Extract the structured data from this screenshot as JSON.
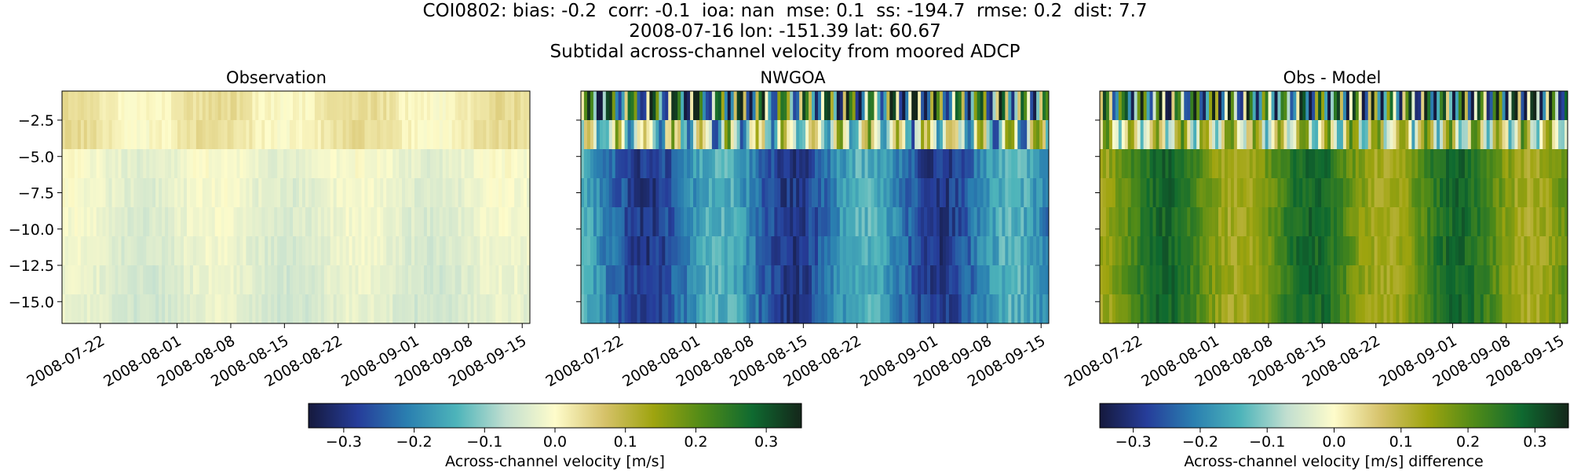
{
  "figure": {
    "title_lines": [
      "COI0802: bias: -0.2  corr: -0.1  ioa: nan  mse: 0.1  ss: -194.7  rmse: 0.2  dist: 7.7",
      "2008-07-16 lon: -151.39 lat: 60.67",
      "Subtidal across-channel velocity from moored ADCP"
    ]
  },
  "chart_data": [
    {
      "type": "heatmap",
      "title": "Observation",
      "x_range": [
        "2008-07-17",
        "2008-09-16"
      ],
      "x_tick_labels": [
        "2008-07-22",
        "2008-08-01",
        "2008-08-08",
        "2008-08-15",
        "2008-08-22",
        "2008-09-01",
        "2008-09-08",
        "2008-09-15"
      ],
      "y_range": [
        -16.5,
        -0.5
      ],
      "y_tick_labels": [
        "-2.5",
        "-5.0",
        "-7.5",
        "-10.0",
        "-12.5",
        "-15.0"
      ],
      "ylabel": "",
      "colormap": "delta",
      "clim": [
        -0.35,
        0.35
      ]
    },
    {
      "type": "heatmap",
      "title": "NWGOA",
      "x_range": [
        "2008-07-17",
        "2008-09-16"
      ],
      "x_tick_labels": [
        "2008-07-22",
        "2008-08-01",
        "2008-08-08",
        "2008-08-15",
        "2008-08-22",
        "2008-09-01",
        "2008-09-08",
        "2008-09-15"
      ],
      "y_range": [
        -16.5,
        -0.5
      ],
      "colormap": "delta",
      "clim": [
        -0.35,
        0.35
      ]
    },
    {
      "type": "heatmap",
      "title": "Obs - Model",
      "x_range": [
        "2008-07-17",
        "2008-09-16"
      ],
      "x_tick_labels": [
        "2008-07-22",
        "2008-08-01",
        "2008-08-08",
        "2008-08-15",
        "2008-08-22",
        "2008-09-01",
        "2008-09-08",
        "2008-09-15"
      ],
      "y_range": [
        -16.5,
        -0.5
      ],
      "colormap": "delta",
      "clim": [
        -0.35,
        0.35
      ]
    }
  ],
  "colorbars": [
    {
      "label": "Across-channel velocity [m/s]",
      "range": [
        -0.35,
        0.35
      ],
      "tick_values": [
        -0.3,
        -0.2,
        -0.1,
        0.0,
        0.1,
        0.2,
        0.3
      ],
      "tick_labels": [
        "−0.3",
        "−0.2",
        "−0.1",
        "0.0",
        "0.1",
        "0.2",
        "0.3"
      ]
    },
    {
      "label": "Across-channel velocity [m/s] difference",
      "range": [
        -0.35,
        0.35
      ],
      "tick_values": [
        -0.3,
        -0.2,
        -0.1,
        0.0,
        0.1,
        0.2,
        0.3
      ],
      "tick_labels": [
        "−0.3",
        "−0.2",
        "−0.1",
        "0.0",
        "0.1",
        "0.2",
        "0.3"
      ]
    }
  ],
  "colors": {
    "cmap_stops": [
      "#15193d",
      "#263d9a",
      "#2a7fb0",
      "#4db4ba",
      "#c2dfd0",
      "#fefccb",
      "#d6c26a",
      "#9ea40f",
      "#4f8a18",
      "#0f6a30",
      "#14261a"
    ]
  }
}
